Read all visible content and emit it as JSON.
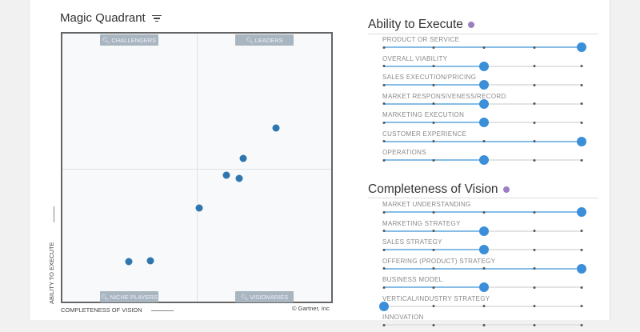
{
  "magic_quadrant": {
    "title": "Magic Quadrant",
    "quadrants": {
      "challengers": "CHALLENGERS",
      "leaders": "LEADERS",
      "niche_players": "NICHE PLAYERS",
      "visionaries": "VISIONARIES"
    },
    "y_axis_label": "ABILITY TO EXECUTE",
    "x_axis_label": "COMPLETENESS OF VISION",
    "copyright": "© Gartner, Inc",
    "dot_color": "#2e76ad",
    "points": [
      {
        "vision": 79.4,
        "execute": 64.9
      },
      {
        "vision": 67.4,
        "execute": 53.4
      },
      {
        "vision": 60.9,
        "execute": 47.2
      },
      {
        "vision": 65.9,
        "execute": 46.0
      },
      {
        "vision": 50.9,
        "execute": 34.8
      },
      {
        "vision": 24.7,
        "execute": 15.0
      },
      {
        "vision": 32.6,
        "execute": 15.3
      }
    ]
  },
  "ability": {
    "title": "Ability to Execute",
    "criteria": [
      {
        "label": "PRODUCT OR SERVICE",
        "level": 5
      },
      {
        "label": "OVERALL VIABILITY",
        "level": 3
      },
      {
        "label": "SALES EXECUTION/PRICING",
        "level": 3
      },
      {
        "label": "MARKET RESPONSIVENESS/RECORD",
        "level": 3
      },
      {
        "label": "MARKETING EXECUTION",
        "level": 3
      },
      {
        "label": "CUSTOMER EXPERIENCE",
        "level": 5
      },
      {
        "label": "OPERATIONS",
        "level": 3
      }
    ]
  },
  "vision": {
    "title": "Completeness of Vision",
    "criteria": [
      {
        "label": "MARKET UNDERSTANDING",
        "level": 5
      },
      {
        "label": "MARKETING STRATEGY",
        "level": 3
      },
      {
        "label": "SALES STRATEGY",
        "level": 3
      },
      {
        "label": "OFFERING (PRODUCT) STRATEGY",
        "level": 5
      },
      {
        "label": "BUSINESS MODEL",
        "level": 3
      },
      {
        "label": "VERTICAL/INDUSTRY STRATEGY",
        "level": 1
      },
      {
        "label": "INNOVATION",
        "level": null
      }
    ]
  },
  "slider_scale": {
    "min": 1,
    "max": 5
  },
  "colors": {
    "accent": "#3b8fd8",
    "fill": "#86bde6",
    "info": "#9b7fc0"
  }
}
